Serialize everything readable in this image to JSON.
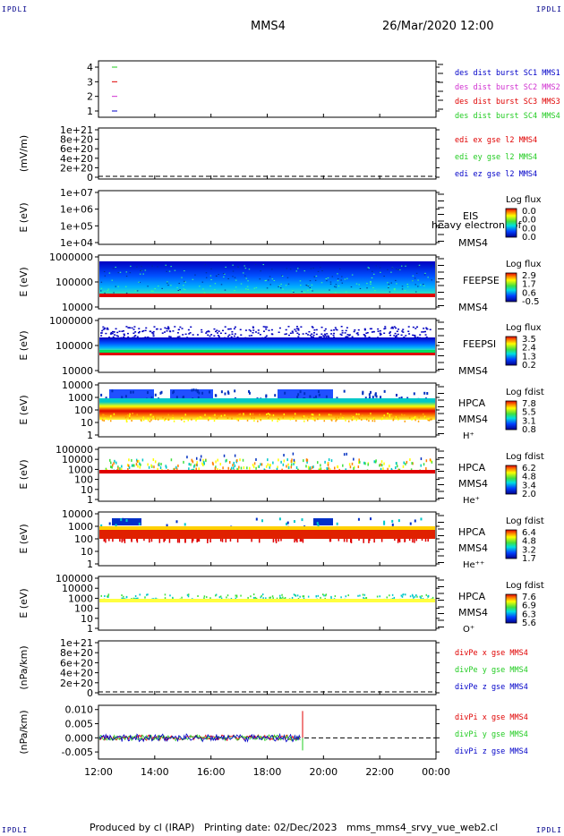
{
  "corner_label": "IPDLI",
  "header": {
    "spacecraft": "MMS4",
    "datetime": "26/Mar/2020 12:00"
  },
  "footer": {
    "produced_by": "Produced by cl (IRAP)",
    "printing_date": "Printing date: 02/Dec/2023",
    "script": "mms_mms4_srvy_vue_web2.cl"
  },
  "colors": {
    "red": "#e00000",
    "green": "#22cc22",
    "blue": "#0000c8",
    "magenta": "#d030d0"
  },
  "chart_data": {
    "type": "line",
    "x_ticks": [
      "12:00",
      "14:00",
      "16:00",
      "18:00",
      "20:00",
      "22:00",
      "00:00"
    ],
    "xlim": [
      "12:00",
      "00:00"
    ],
    "panels": [
      {
        "id": "burst",
        "type": "line",
        "ylabel": "",
        "yticks": [
          "1",
          "2",
          "3",
          "4"
        ],
        "series": [
          {
            "name": "des dist burst SC1 MMS1",
            "color": "#0000c8"
          },
          {
            "name": "des dist burst SC2 MMS2",
            "color": "#d030d0"
          },
          {
            "name": "des dist burst SC3 MMS3",
            "color": "#e00000"
          },
          {
            "name": "des dist burst SC4 MMS4",
            "color": "#22cc22"
          }
        ]
      },
      {
        "id": "edi",
        "type": "line",
        "ylabel": "(mV/m)",
        "yticks": [
          "0",
          "2e+20",
          "4e+20",
          "6e+20",
          "8e+20",
          "1e+21"
        ],
        "series": [
          {
            "name": "edi ex gse l2 MMS4",
            "color": "#e00000"
          },
          {
            "name": "edi ey gse l2 MMS4",
            "color": "#22cc22"
          },
          {
            "name": "edi ez gse l2 MMS4",
            "color": "#0000c8"
          }
        ]
      },
      {
        "id": "eis",
        "type": "heatmap",
        "ylabel": "E (eV)",
        "yticks": [
          "1e+04",
          "1e+05",
          "1e+06",
          "1e+07"
        ],
        "labels": [
          "EIS",
          "MMS4"
        ],
        "overlay_text": "heavy electron tof",
        "colorbar": {
          "title": "Log flux",
          "ticks": [
            "0.0",
            "0.0",
            "0.0",
            "0.0"
          ]
        }
      },
      {
        "id": "feepse",
        "type": "heatmap",
        "ylabel": "E (eV)",
        "yticks": [
          "10000",
          "100000",
          "1000000"
        ],
        "labels": [
          "FEEPSE",
          "MMS4"
        ],
        "colorbar": {
          "title": "Log flux",
          "ticks": [
            "2.9",
            "1.7",
            "0.6",
            "-0.5"
          ]
        }
      },
      {
        "id": "feepsi",
        "type": "heatmap",
        "ylabel": "E (eV)",
        "yticks": [
          "10000",
          "100000",
          "1000000"
        ],
        "labels": [
          "FEEPSI",
          "MMS4"
        ],
        "colorbar": {
          "title": "Log flux",
          "ticks": [
            "3.5",
            "2.4",
            "1.3",
            "0.2"
          ]
        }
      },
      {
        "id": "hpca_h",
        "type": "heatmap",
        "ylabel": "E (eV)",
        "yticks": [
          "1",
          "10",
          "100",
          "1000",
          "10000"
        ],
        "labels": [
          "HPCA",
          "MMS4",
          "H⁺"
        ],
        "colorbar": {
          "title": "Log fdist",
          "ticks": [
            "7.8",
            "5.5",
            "3.1",
            "0.8"
          ]
        }
      },
      {
        "id": "hpca_he",
        "type": "heatmap",
        "ylabel": "E (eV)",
        "yticks": [
          "1",
          "10",
          "100",
          "1000",
          "10000",
          "100000"
        ],
        "labels": [
          "HPCA",
          "MMS4",
          "He⁺"
        ],
        "colorbar": {
          "title": "Log fdist",
          "ticks": [
            "6.2",
            "4.8",
            "3.4",
            "2.0"
          ]
        }
      },
      {
        "id": "hpca_hepp",
        "type": "heatmap",
        "ylabel": "E (eV)",
        "yticks": [
          "1",
          "10",
          "100",
          "1000",
          "10000"
        ],
        "labels": [
          "HPCA",
          "MMS4",
          "He⁺⁺"
        ],
        "colorbar": {
          "title": "Log fdist",
          "ticks": [
            "6.4",
            "4.8",
            "3.2",
            "1.7"
          ]
        }
      },
      {
        "id": "hpca_o",
        "type": "heatmap",
        "ylabel": "E (eV)",
        "yticks": [
          "1",
          "10",
          "100",
          "1000",
          "10000",
          "100000"
        ],
        "labels": [
          "HPCA",
          "MMS4",
          "O⁺"
        ],
        "colorbar": {
          "title": "Log fdist",
          "ticks": [
            "7.6",
            "6.9",
            "6.3",
            "5.6"
          ]
        }
      },
      {
        "id": "divpe",
        "type": "line",
        "ylabel": "(nPa/km)",
        "yticks": [
          "0",
          "2e+20",
          "4e+20",
          "6e+20",
          "8e+20",
          "1e+21"
        ],
        "series": [
          {
            "name": "divPe x gse MMS4",
            "color": "#e00000"
          },
          {
            "name": "divPe y gse MMS4",
            "color": "#22cc22"
          },
          {
            "name": "divPe z gse MMS4",
            "color": "#0000c8"
          }
        ]
      },
      {
        "id": "divpi",
        "type": "line",
        "ylabel": "(nPa/km)",
        "yticks": [
          "-0.005",
          "0.000",
          "0.005",
          "0.010"
        ],
        "ylim": [
          -0.0075,
          0.0115
        ],
        "series": [
          {
            "name": "divPi x gse MMS4",
            "color": "#e00000"
          },
          {
            "name": "divPi y gse MMS4",
            "color": "#22cc22"
          },
          {
            "name": "divPi z gse MMS4",
            "color": "#0000c8"
          }
        ]
      }
    ]
  }
}
